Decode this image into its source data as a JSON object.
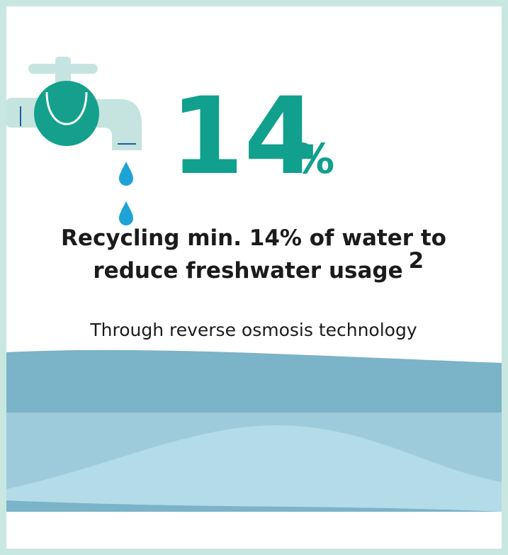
{
  "stat": {
    "value": "14",
    "unit": "%"
  },
  "headline": {
    "lines": [
      "Recycling min. 14% of water to",
      "reduce freshwater usage"
    ],
    "footnote": "2"
  },
  "subtitle": "Through reverse osmosis technology"
}
